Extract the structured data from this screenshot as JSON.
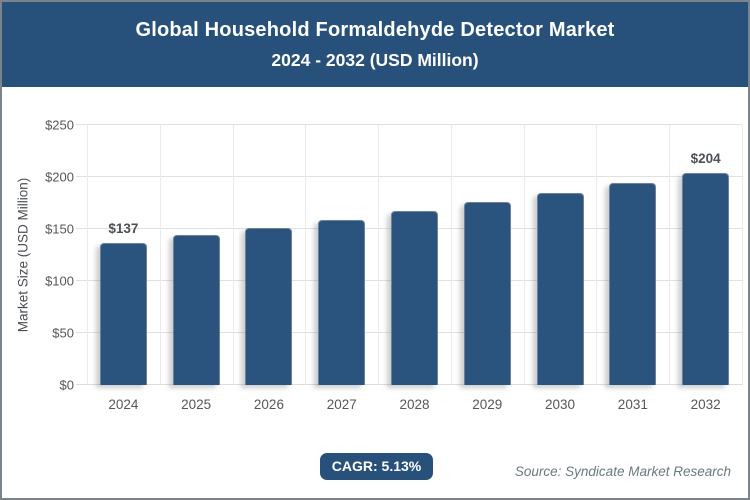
{
  "header": {
    "title_line1": "Global Household Formaldehyde Detector Market",
    "title_line2": "2024 - 2032 (USD Million)"
  },
  "chart_data": {
    "type": "bar",
    "title": "Global Household Formaldehyde Detector Market 2024 - 2032 (USD Million)",
    "categories": [
      "2024",
      "2025",
      "2026",
      "2027",
      "2028",
      "2029",
      "2030",
      "2031",
      "2032"
    ],
    "values": [
      137,
      144,
      151,
      159,
      167,
      176,
      185,
      194,
      204
    ],
    "value_labels": [
      {
        "index": 0,
        "text": "$137"
      },
      {
        "index": 8,
        "text": "$204"
      }
    ],
    "xlabel": "",
    "ylabel": "Market Size (USD Million)",
    "ylim": [
      0,
      250
    ],
    "yticks": [
      {
        "value": 0,
        "label": "$0"
      },
      {
        "value": 50,
        "label": "$50"
      },
      {
        "value": 100,
        "label": "$100"
      },
      {
        "value": 150,
        "label": "$150"
      },
      {
        "value": 200,
        "label": "$200"
      },
      {
        "value": 250,
        "label": "$250"
      }
    ],
    "grid": "horizontal and vertical gridlines, light gray",
    "legend": "none",
    "bar_color": "#2a547e"
  },
  "footer": {
    "cagr_label": "CAGR: 5.13%",
    "source": "Source: Syndicate Market Research"
  },
  "colors": {
    "header_background": "#27517b",
    "bar": "#2a547e",
    "badge_background": "#27517b",
    "frame_border": "#7b838b",
    "gridline": "#e0e0e0",
    "axis_text": "#54575b",
    "value_label_text": "#4c5156",
    "source_text": "#69797d"
  }
}
